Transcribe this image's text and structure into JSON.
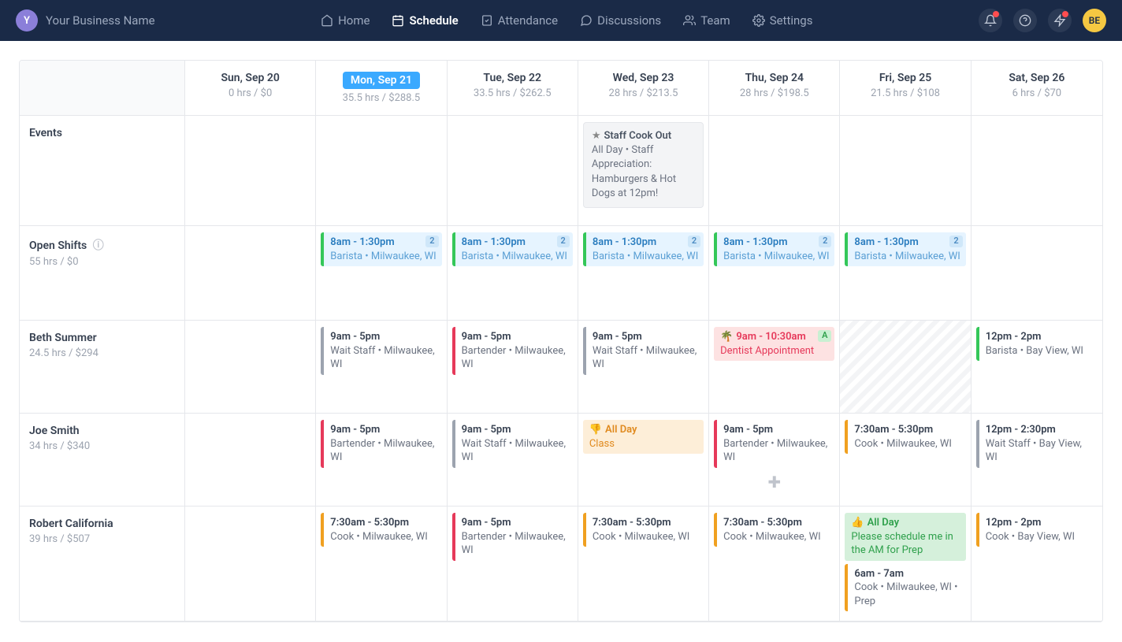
{
  "brand": {
    "logo_letter": "Y",
    "name": "Your Business Name"
  },
  "nav": [
    {
      "key": "home",
      "label": "Home",
      "active": false
    },
    {
      "key": "schedule",
      "label": "Schedule",
      "active": true
    },
    {
      "key": "attendance",
      "label": "Attendance",
      "active": false
    },
    {
      "key": "discussions",
      "label": "Discussions",
      "active": false
    },
    {
      "key": "team",
      "label": "Team",
      "active": false
    },
    {
      "key": "settings",
      "label": "Settings",
      "active": false
    }
  ],
  "avatar_initials": "BE",
  "colors": {
    "nav_bg": "#1a2a47",
    "today_pill": "#3aa9ff",
    "open_bg": "#e6f4ff",
    "open_border": "#34c759",
    "appt_bg": "#fde2e2",
    "class_bg": "#fdeed8",
    "pref_bg": "#d5f0db",
    "orange": "#f0a020",
    "red": "#e6395a",
    "gray": "#9ca3af",
    "green": "#34c759"
  },
  "days": [
    {
      "label": "Sun, Sep 20",
      "stats": "0 hrs / $0",
      "today": false
    },
    {
      "label": "Mon, Sep 21",
      "stats": "35.5 hrs / $288.5",
      "today": true
    },
    {
      "label": "Tue, Sep 22",
      "stats": "33.5 hrs / $262.5",
      "today": false
    },
    {
      "label": "Wed, Sep 23",
      "stats": "28 hrs / $213.5",
      "today": false
    },
    {
      "label": "Thu, Sep 24",
      "stats": "28 hrs / $198.5",
      "today": false
    },
    {
      "label": "Fri, Sep 25",
      "stats": "21.5 hrs / $108",
      "today": false
    },
    {
      "label": "Sat, Sep 26",
      "stats": "6 hrs / $70",
      "today": false
    }
  ],
  "rows": {
    "events": {
      "name": "Events",
      "cells": [
        null,
        null,
        null,
        {
          "kind": "event",
          "title": "Staff Cook Out",
          "detail": "All Day • Staff Appreciation: Hamburgers & Hot Dogs at 12pm!"
        },
        null,
        null,
        null
      ]
    },
    "open": {
      "name": "Open Shifts",
      "stats": "55 hrs / $0",
      "help": true,
      "cells": [
        null,
        {
          "kind": "open",
          "time": "8am - 1:30pm",
          "meta": "Barista • Milwaukee, WI",
          "badge": "2"
        },
        {
          "kind": "open",
          "time": "8am - 1:30pm",
          "meta": "Barista • Milwaukee, WI",
          "badge": "2"
        },
        {
          "kind": "open",
          "time": "8am - 1:30pm",
          "meta": "Barista • Milwaukee, WI",
          "badge": "2"
        },
        {
          "kind": "open",
          "time": "8am - 1:30pm",
          "meta": "Barista • Milwaukee, WI",
          "badge": "2"
        },
        {
          "kind": "open",
          "time": "8am - 1:30pm",
          "meta": "Barista • Milwaukee, WI",
          "badge": "2"
        },
        null
      ]
    },
    "beth": {
      "name": "Beth Summer",
      "stats": "24.5 hrs / $294",
      "cells": [
        null,
        {
          "kind": "shift",
          "color": "gray",
          "time": "9am - 5pm",
          "meta": "Wait Staff • Milwaukee, WI"
        },
        {
          "kind": "shift",
          "color": "red",
          "time": "9am - 5pm",
          "meta": "Bartender • Milwaukee, WI"
        },
        {
          "kind": "shift",
          "color": "gray",
          "time": "9am - 5pm",
          "meta": "Wait Staff • Milwaukee, WI"
        },
        {
          "kind": "appt",
          "time": "9am - 10:30am",
          "meta": "Dentist Appointment",
          "abadge": "A"
        },
        {
          "kind": "hatched"
        },
        {
          "kind": "shift",
          "color": "green",
          "time": "12pm - 2pm",
          "meta": "Barista • Bay View, WI"
        }
      ]
    },
    "joe": {
      "name": "Joe Smith",
      "stats": "34 hrs / $340",
      "cells": [
        null,
        {
          "kind": "shift",
          "color": "red",
          "time": "9am - 5pm",
          "meta": "Bartender • Milwaukee, WI"
        },
        {
          "kind": "shift",
          "color": "gray",
          "time": "9am - 5pm",
          "meta": "Wait Staff • Milwaukee, WI"
        },
        {
          "kind": "class",
          "time": "All Day",
          "meta": "Class"
        },
        {
          "kind": "shift",
          "color": "red",
          "time": "9am - 5pm",
          "meta": "Bartender • Milwaukee, WI",
          "add": true
        },
        {
          "kind": "shift",
          "color": "orange",
          "time": "7:30am - 5:30pm",
          "meta": "Cook • Milwaukee, WI"
        },
        {
          "kind": "shift",
          "color": "gray",
          "time": "12pm - 2:30pm",
          "meta": "Wait Staff • Bay View, WI"
        }
      ]
    },
    "robert": {
      "name": "Robert California",
      "stats": "39 hrs / $507",
      "cells": [
        null,
        {
          "kind": "shift",
          "color": "orange",
          "time": "7:30am - 5:30pm",
          "meta": "Cook • Milwaukee, WI"
        },
        {
          "kind": "shift",
          "color": "red",
          "time": "9am - 5pm",
          "meta": "Bartender • Milwaukee, WI"
        },
        {
          "kind": "shift",
          "color": "orange",
          "time": "7:30am - 5:30pm",
          "meta": "Cook • Milwaukee, WI"
        },
        {
          "kind": "shift",
          "color": "orange",
          "time": "7:30am - 5:30pm",
          "meta": "Cook • Milwaukee, WI"
        },
        {
          "kind": "prefshift",
          "pref": {
            "time": "All Day",
            "meta": "Please schedule me in the AM for Prep"
          },
          "shift": {
            "color": "orange",
            "time": "6am - 7am",
            "meta": "Cook • Milwaukee, WI • Prep"
          }
        },
        {
          "kind": "shift",
          "color": "orange",
          "time": "12pm - 2pm",
          "meta": "Cook • Bay View, WI"
        }
      ]
    }
  }
}
